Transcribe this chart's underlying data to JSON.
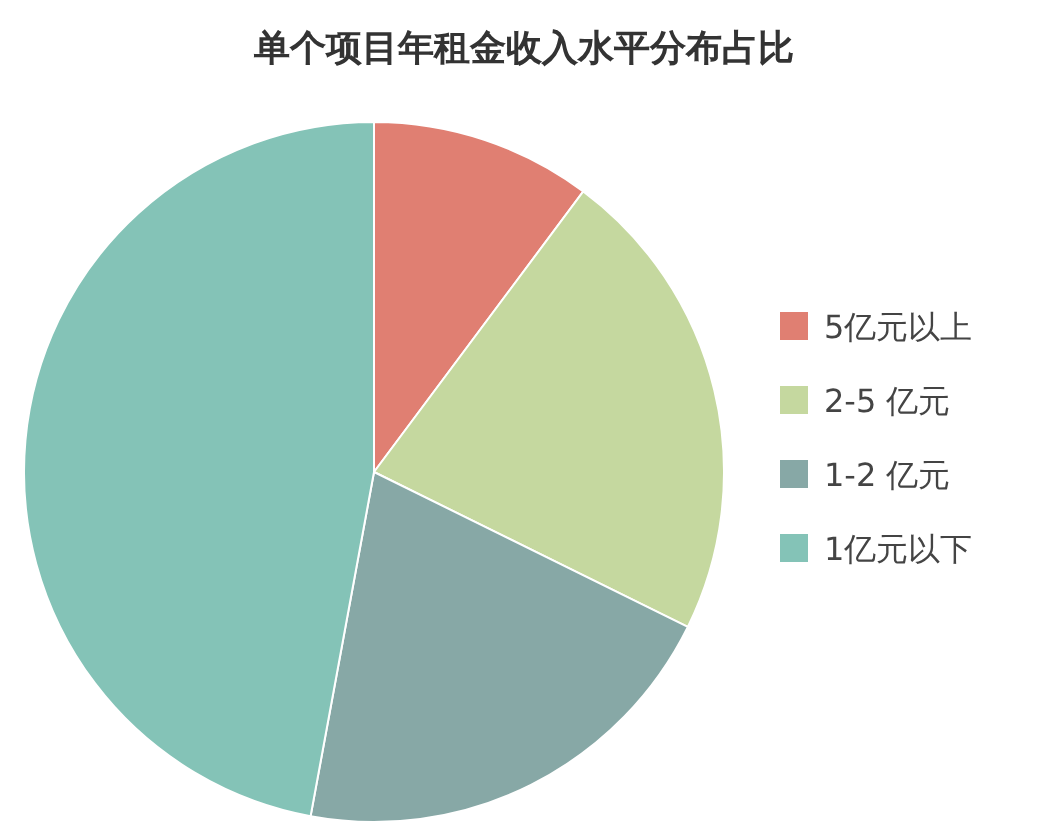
{
  "chart_data": {
    "type": "pie",
    "title": "单个项目年租金收入水平分布占比",
    "categories": [
      "5亿元以上",
      "2-5 亿元",
      "1-2 亿元",
      "1亿元以下"
    ],
    "values": [
      10.2,
      22.1,
      20.6,
      47.1
    ],
    "colors": [
      "#e07f72",
      "#c5d89f",
      "#87a8a6",
      "#84c3b7"
    ],
    "legend": "right"
  }
}
